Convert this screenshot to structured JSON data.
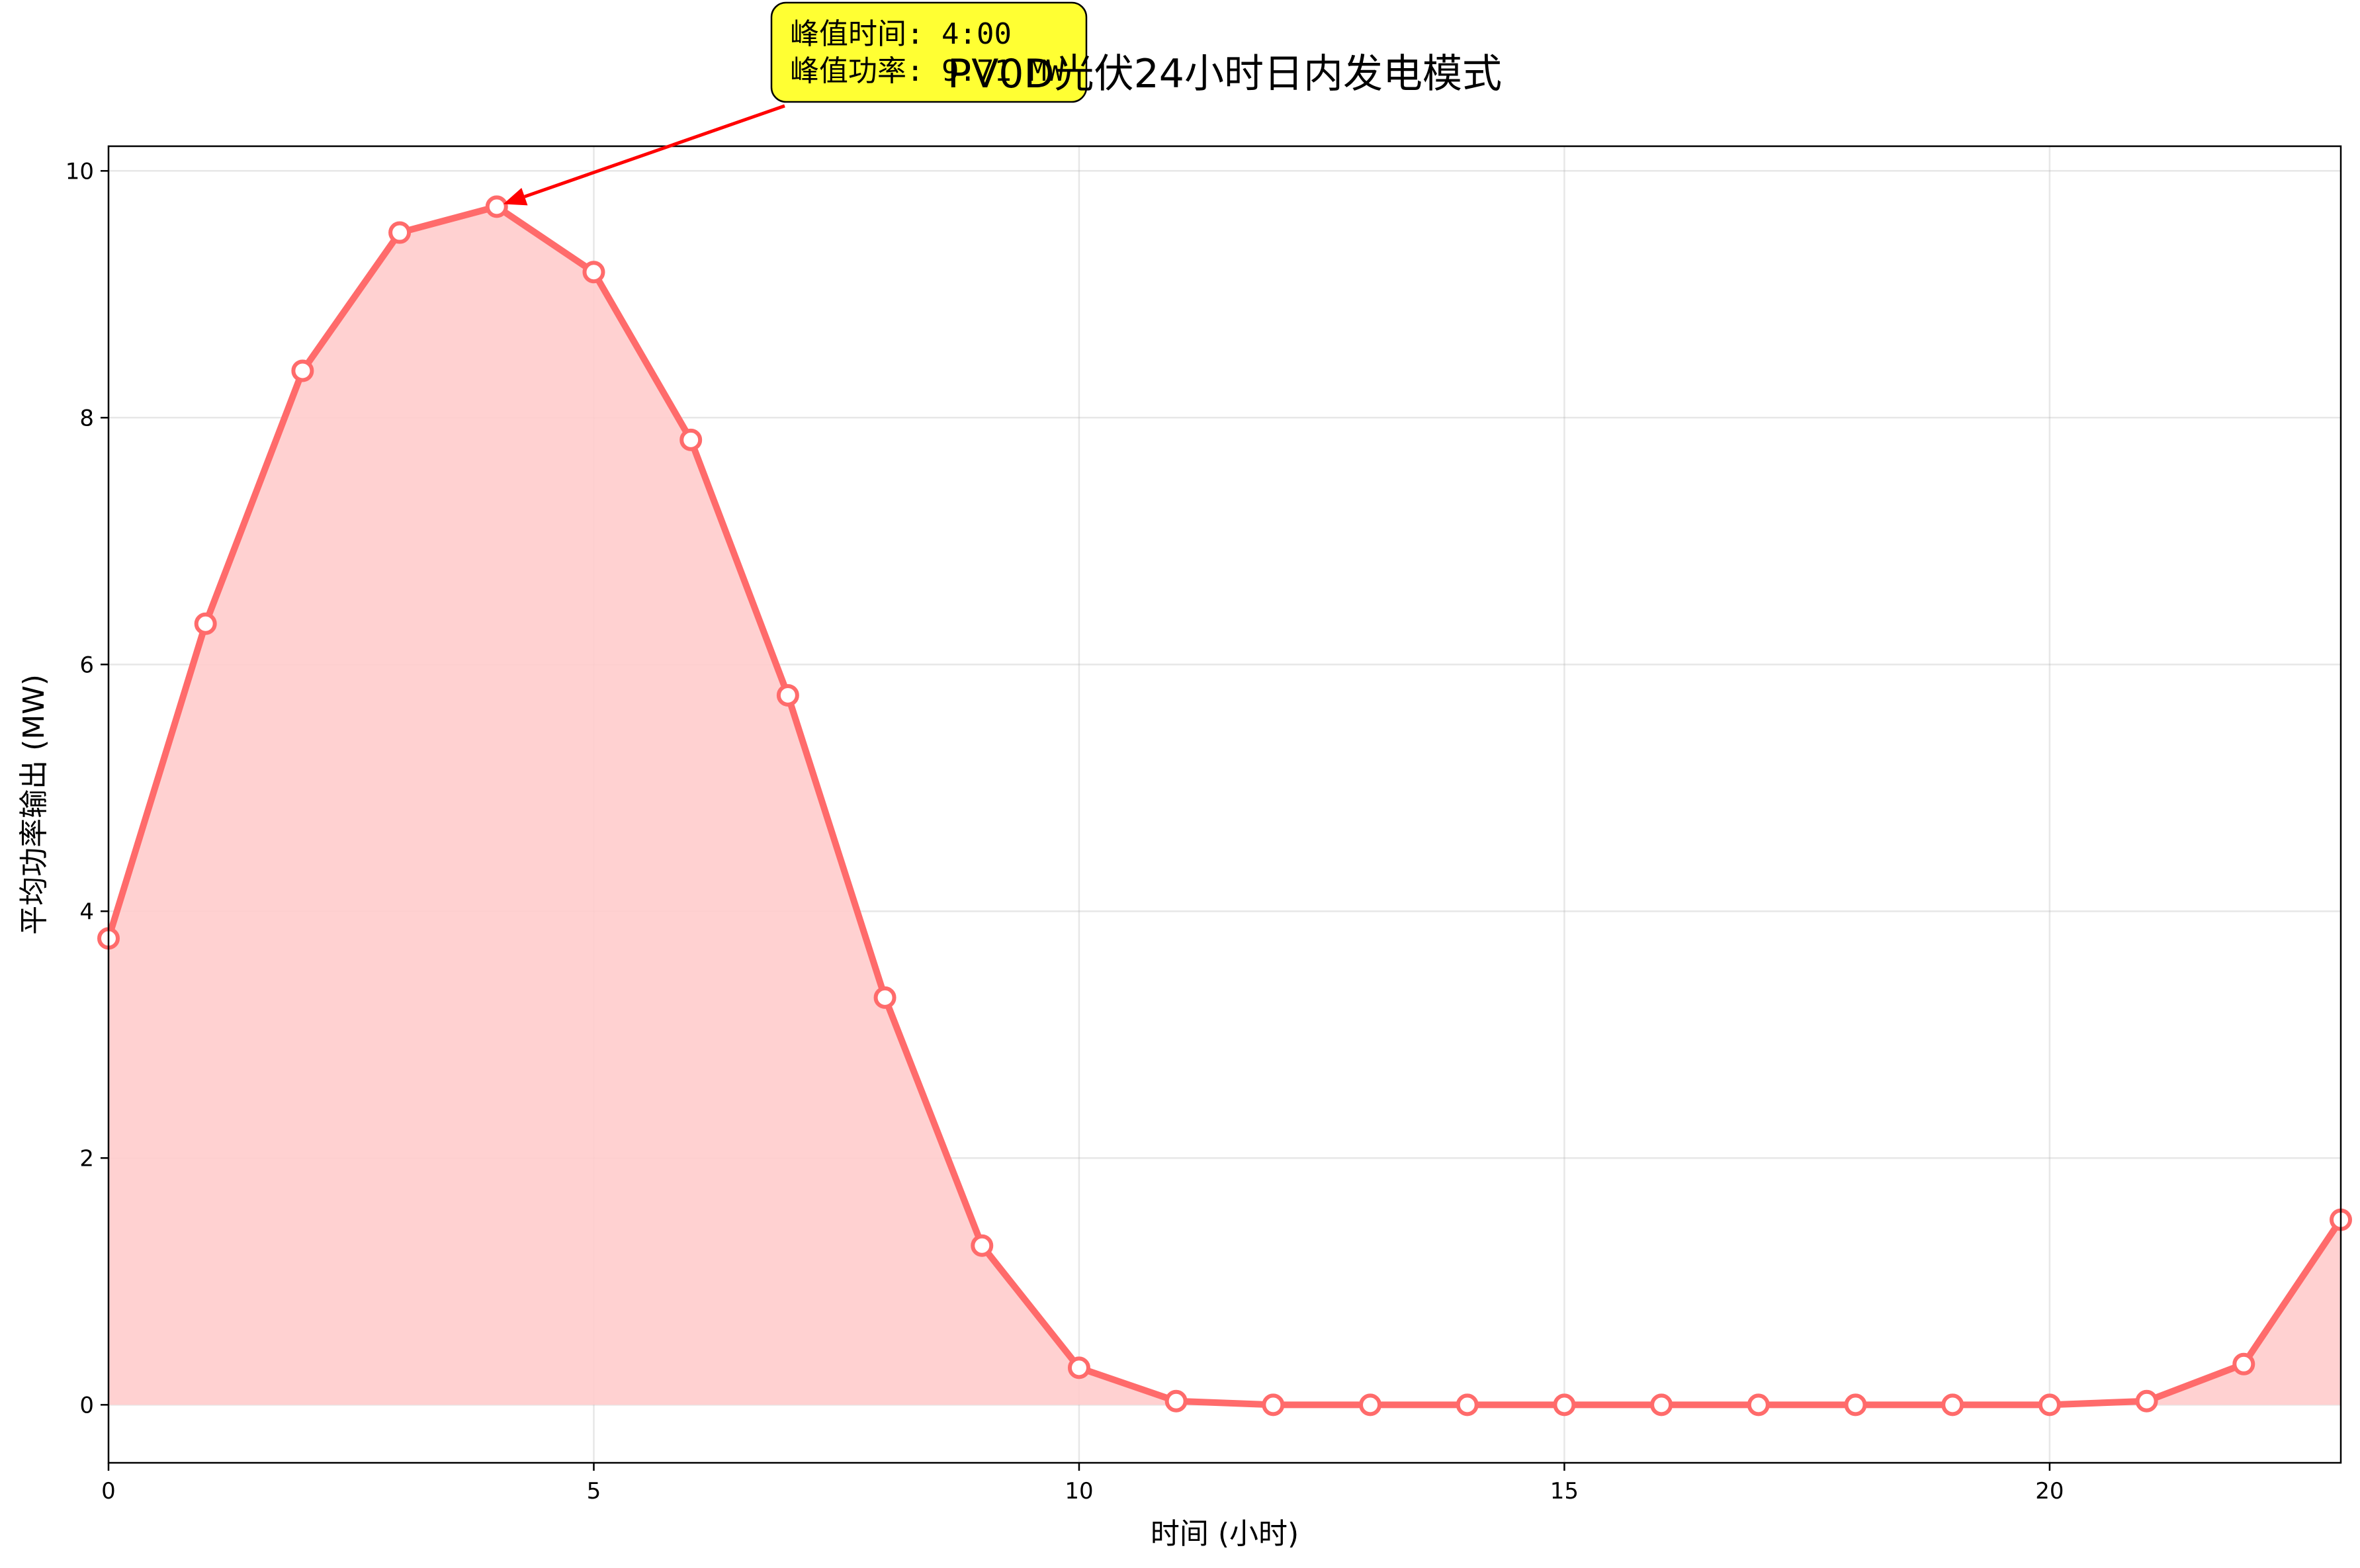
{
  "chart_data": {
    "type": "area",
    "title": "PV0D光伏24小时日内发电模式",
    "xlabel": "时间 (小时)",
    "ylabel": "平均功率输出 (MW)",
    "xlim": [
      0,
      23
    ],
    "ylim": [
      -0.47,
      10.2
    ],
    "x_ticks": [
      0,
      5,
      10,
      15,
      20
    ],
    "y_ticks": [
      0,
      2,
      4,
      6,
      8,
      10
    ],
    "grid": true,
    "legend": "none",
    "colors": {
      "line": "#ff6b6b",
      "fill": "#ffcccc",
      "marker_fill": "#ffffff",
      "annotation_bg": "#ffff33",
      "arrow": "#ff0000"
    },
    "x": [
      0,
      1,
      2,
      3,
      4,
      5,
      6,
      7,
      8,
      9,
      10,
      11,
      12,
      13,
      14,
      15,
      16,
      17,
      18,
      19,
      20,
      21,
      22,
      23
    ],
    "series": [
      {
        "values": [
          3.78,
          6.33,
          8.38,
          9.5,
          9.71,
          9.18,
          7.82,
          5.75,
          3.3,
          1.29,
          0.3,
          0.03,
          0,
          0,
          0,
          0,
          0,
          0,
          0,
          0,
          0,
          0.03,
          0.33,
          1.5
        ]
      }
    ],
    "annotation": {
      "line1": "峰值时间: 4:00",
      "line2": "峰值功率: 9.71 MW",
      "target_x": 4,
      "target_y": 9.71
    }
  }
}
